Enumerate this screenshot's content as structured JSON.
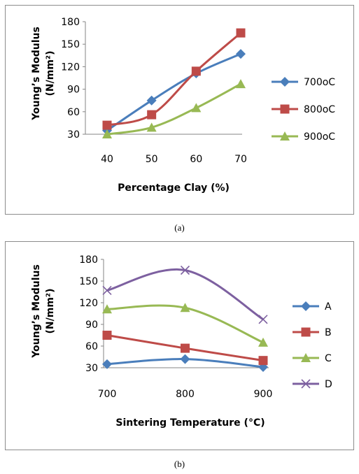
{
  "captions": {
    "a": "(a)",
    "b": "(b)"
  },
  "chart_data": [
    {
      "type": "line",
      "xlabel": "Percentage Clay (%)",
      "ylabel": "Young’s Modulus",
      "ylabel_unit": "(N/mm²)",
      "x": [
        40,
        50,
        60,
        70
      ],
      "ylim": [
        30,
        180
      ],
      "yticks": [
        30,
        60,
        90,
        120,
        150,
        180
      ],
      "grid": false,
      "legend_position": "right",
      "series": [
        {
          "name": "700oC",
          "color": "#4a7ebb",
          "marker": "diamond",
          "values": [
            35,
            75,
            111,
            137
          ]
        },
        {
          "name": "800oC",
          "color": "#be4b48",
          "marker": "square",
          "values": [
            42,
            56,
            114,
            165
          ]
        },
        {
          "name": "900oC",
          "color": "#98b954",
          "marker": "triangle",
          "values": [
            30,
            39,
            65,
            97
          ]
        }
      ]
    },
    {
      "type": "line",
      "xlabel": "Sintering Temperature (°C)",
      "ylabel": "Young’s Modulus",
      "ylabel_unit": "(N/mm²)",
      "x": [
        700,
        800,
        900
      ],
      "ylim": [
        30,
        180
      ],
      "yticks": [
        30,
        60,
        90,
        120,
        150,
        180
      ],
      "grid": false,
      "legend_position": "right",
      "series": [
        {
          "name": "A",
          "color": "#4a7ebb",
          "marker": "diamond",
          "values": [
            35,
            42,
            31
          ]
        },
        {
          "name": "B",
          "color": "#be4b48",
          "marker": "square",
          "values": [
            75,
            57,
            40
          ]
        },
        {
          "name": "C",
          "color": "#98b954",
          "marker": "triangle",
          "values": [
            111,
            113,
            65
          ]
        },
        {
          "name": "D",
          "color": "#7d60a0",
          "marker": "x",
          "values": [
            137,
            165,
            97
          ]
        }
      ]
    }
  ]
}
